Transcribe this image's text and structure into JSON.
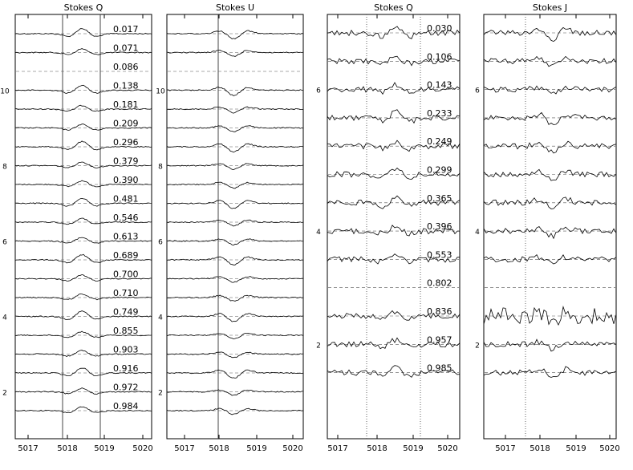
{
  "chart_data": [
    {
      "type": "line",
      "title": "Stokes Q",
      "x_ticks": [
        "5017",
        "5018",
        "5019",
        "5020"
      ],
      "y_ticks": [
        "10",
        "8",
        "6",
        "4",
        "2"
      ],
      "profile_labels": [
        "0.017",
        "0.071",
        "0.086",
        "0.138",
        "0.181",
        "0.209",
        "0.296",
        "0.379",
        "0.390",
        "0.481",
        "0.546",
        "0.613",
        "0.689",
        "0.700",
        "0.710",
        "0.749",
        "0.855",
        "0.903",
        "0.916",
        "0.972",
        "0.984"
      ],
      "blank_row": 2,
      "line_style": "solid",
      "signal": 1
    },
    {
      "type": "line",
      "title": "Stokes U",
      "x_ticks": [
        "5017",
        "5018",
        "5019",
        "5020"
      ],
      "y_ticks": [
        "10",
        "8",
        "6",
        "4",
        "2"
      ],
      "profile_labels": [],
      "blank_row": 2,
      "line_style": "solid",
      "signal": -1
    },
    {
      "type": "line",
      "title": "Stokes Q",
      "x_ticks": [
        "5017",
        "5018",
        "5019",
        "5020"
      ],
      "y_ticks": [
        "6",
        "4",
        "2"
      ],
      "profile_labels": [
        "0.030",
        "0.106",
        "0.143",
        "0.233",
        "0.249",
        "0.299",
        "0.365",
        "0.396",
        "0.553",
        "0.802",
        "0.836",
        "0.957",
        "0.985"
      ],
      "blank_row": 9,
      "line_style": "dotted",
      "signal": 1
    },
    {
      "type": "line",
      "title": "Stokes J",
      "x_ticks": [
        "5017",
        "5018",
        "5019",
        "5020"
      ],
      "y_ticks": [
        "6",
        "4",
        "2"
      ],
      "profile_labels": [],
      "blank_row": 9,
      "line_style": "dotted",
      "signal": -1
    }
  ]
}
